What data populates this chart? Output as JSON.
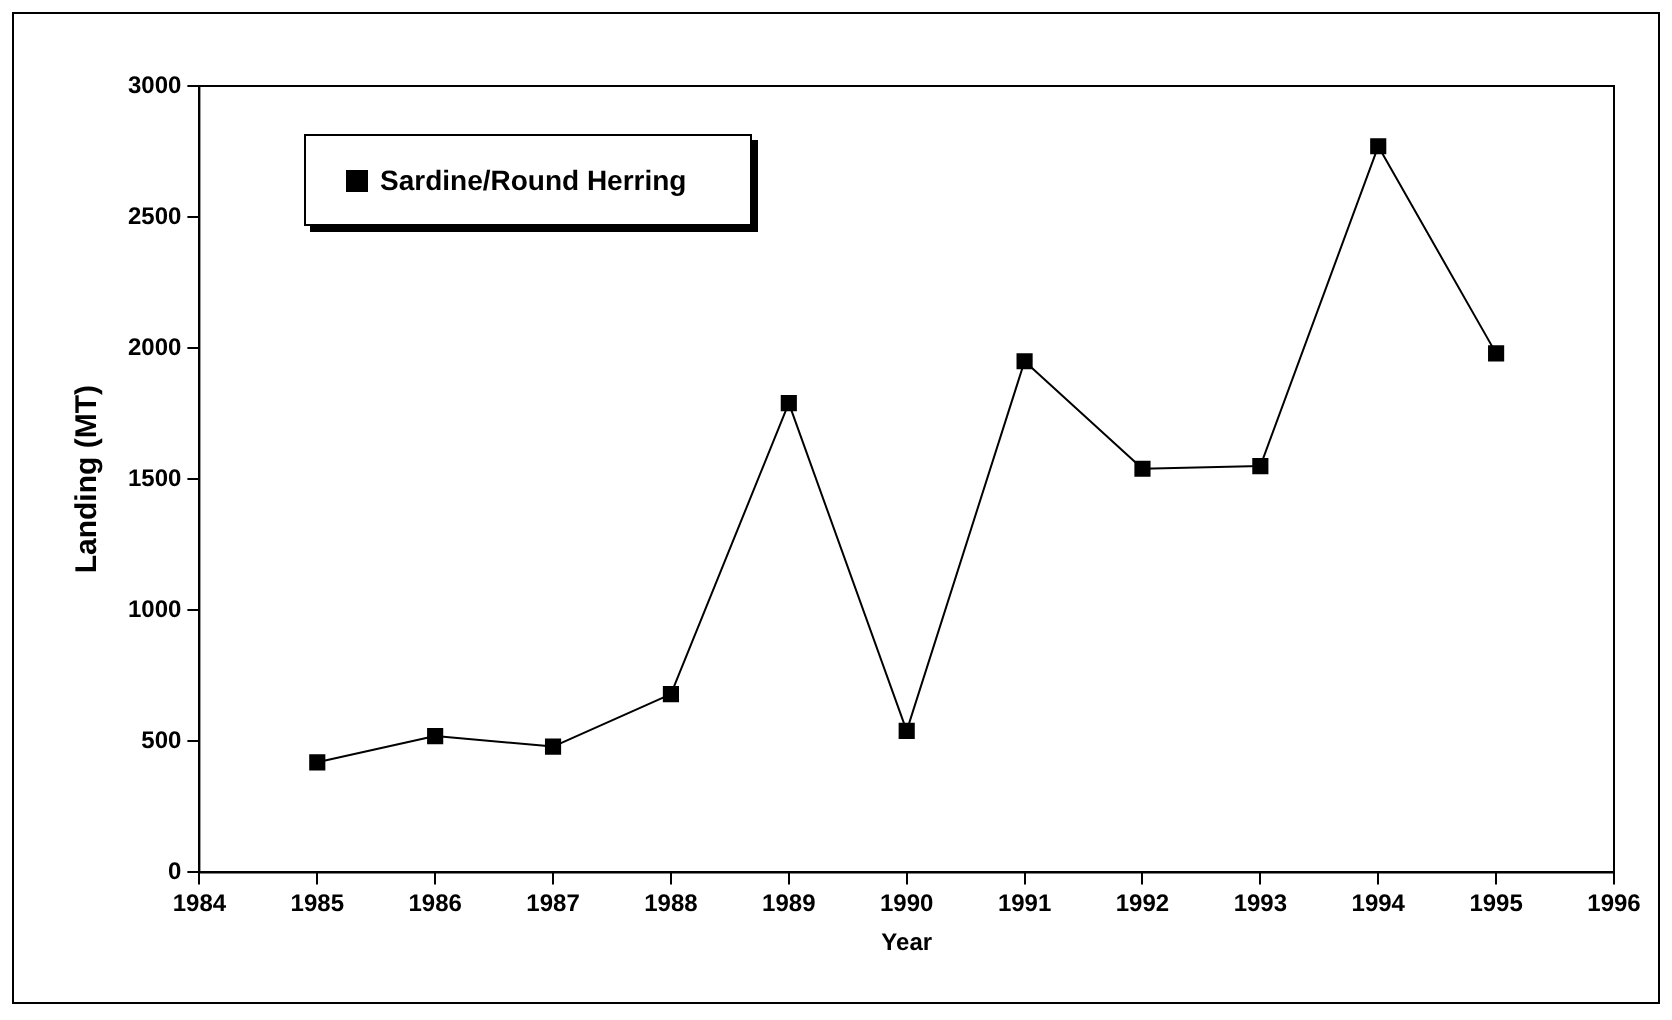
{
  "chart_data": {
    "type": "line",
    "xlabel": "Year",
    "ylabel": "Landing (MT)",
    "x": [
      1985,
      1986,
      1987,
      1988,
      1989,
      1990,
      1991,
      1992,
      1993,
      1994,
      1995
    ],
    "series": [
      {
        "name": "Sardine/Round Herring",
        "color": "#000000",
        "values": [
          420,
          520,
          480,
          680,
          1790,
          540,
          1950,
          1540,
          1550,
          2770,
          1980
        ]
      }
    ],
    "xlim": [
      1984,
      1996
    ],
    "xticks": [
      1984,
      1985,
      1986,
      1987,
      1988,
      1989,
      1990,
      1991,
      1992,
      1993,
      1994,
      1995,
      1996
    ],
    "ylim": [
      0,
      3000
    ],
    "yticks": [
      0,
      500,
      1000,
      1500,
      2000,
      2500,
      3000
    ],
    "grid": false,
    "legend": "top left",
    "marker": "square",
    "line_style": "solid"
  }
}
